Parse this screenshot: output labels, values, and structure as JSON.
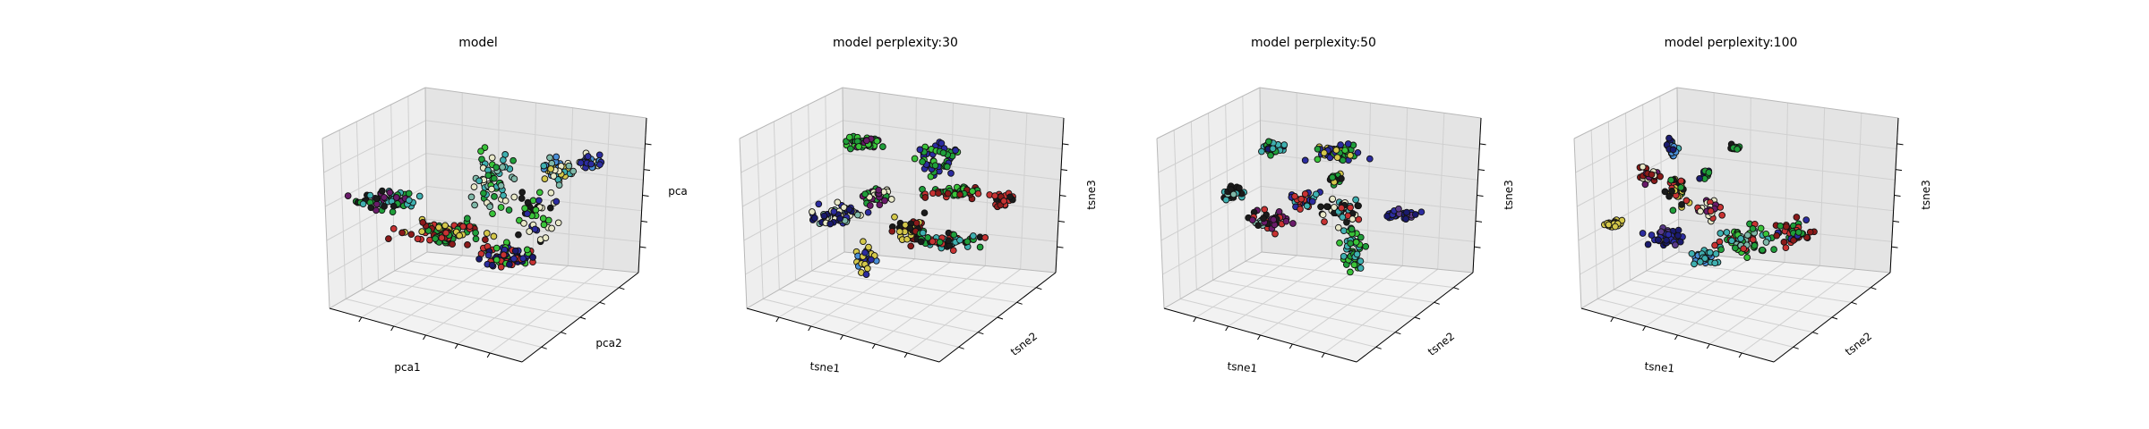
{
  "chart_data": [
    {
      "type": "scatter",
      "title": "model",
      "xlabel": "pca1",
      "ylabel": "pca2",
      "zlabel": "pca",
      "grid": true,
      "style": "pca"
    },
    {
      "type": "scatter",
      "title": "model perplexity:30",
      "xlabel": "tsne1",
      "ylabel": "tsne2",
      "zlabel": "tsne3",
      "grid": true,
      "style": "p30"
    },
    {
      "type": "scatter",
      "title": "model perplexity:50",
      "xlabel": "tsne1",
      "ylabel": "tsne2",
      "zlabel": "tsne3",
      "grid": true,
      "style": "p50"
    },
    {
      "type": "scatter",
      "title": "model perplexity:100",
      "xlabel": "tsne1",
      "ylabel": "tsne2",
      "zlabel": "tsne3",
      "grid": true,
      "style": "p100"
    }
  ],
  "palette": [
    "#1b1b1b",
    "#2c2ca0",
    "#1a1a6e",
    "#6a1b6a",
    "#4a8fd6",
    "#3fb0b0",
    "#1f9e3a",
    "#3ac43a",
    "#c83232",
    "#8b1a1a",
    "#d4c84a",
    "#7fb8a8",
    "#e8e8c8",
    "#5a3a8a",
    "#2a6a2a"
  ]
}
